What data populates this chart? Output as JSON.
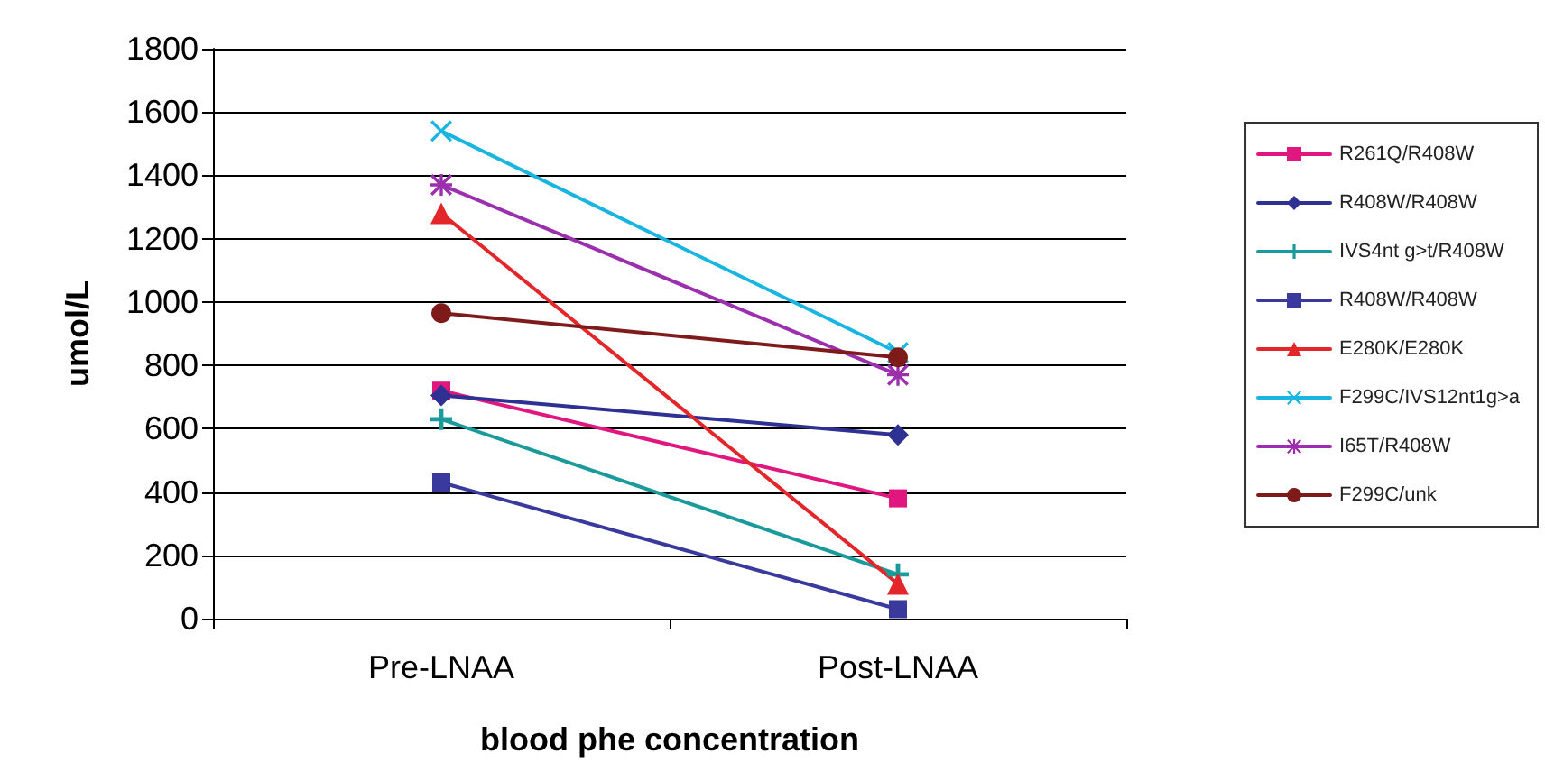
{
  "chart_data": {
    "type": "line",
    "xlabel": "blood phe concentration",
    "ylabel": "umol/L",
    "categories": [
      "Pre-LNAA",
      "Post-LNAA"
    ],
    "ylim": [
      0,
      1800
    ],
    "yticks": [
      0,
      200,
      400,
      600,
      800,
      1000,
      1200,
      1400,
      1600,
      1800
    ],
    "grid": "y",
    "legend": "right",
    "series": [
      {
        "name": "R261Q/R408W",
        "color": "#e0177f",
        "marker": "square",
        "values": [
          720,
          380
        ]
      },
      {
        "name": "R408W/R408W",
        "color": "#2e3192",
        "marker": "diamond",
        "values": [
          705,
          580
        ]
      },
      {
        "name": "IVS4nt g>t/R408W",
        "color": "#1a9a9a",
        "marker": "plus",
        "values": [
          630,
          140
        ]
      },
      {
        "name": "R408W/R408W",
        "color": "#3a3a9e",
        "marker": "square",
        "values": [
          430,
          30
        ]
      },
      {
        "name": "E280K/E280K",
        "color": "#e3262a",
        "marker": "triangle",
        "values": [
          1280,
          110
        ]
      },
      {
        "name": "F299C/IVS12nt1g>a",
        "color": "#19b5e0",
        "marker": "cross",
        "values": [
          1540,
          840
        ]
      },
      {
        "name": "I65T/R408W",
        "color": "#9b2fae",
        "marker": "star",
        "values": [
          1370,
          770
        ]
      },
      {
        "name": "F299C/unk",
        "color": "#7f1a1a",
        "marker": "circle",
        "values": [
          965,
          825
        ]
      }
    ]
  }
}
